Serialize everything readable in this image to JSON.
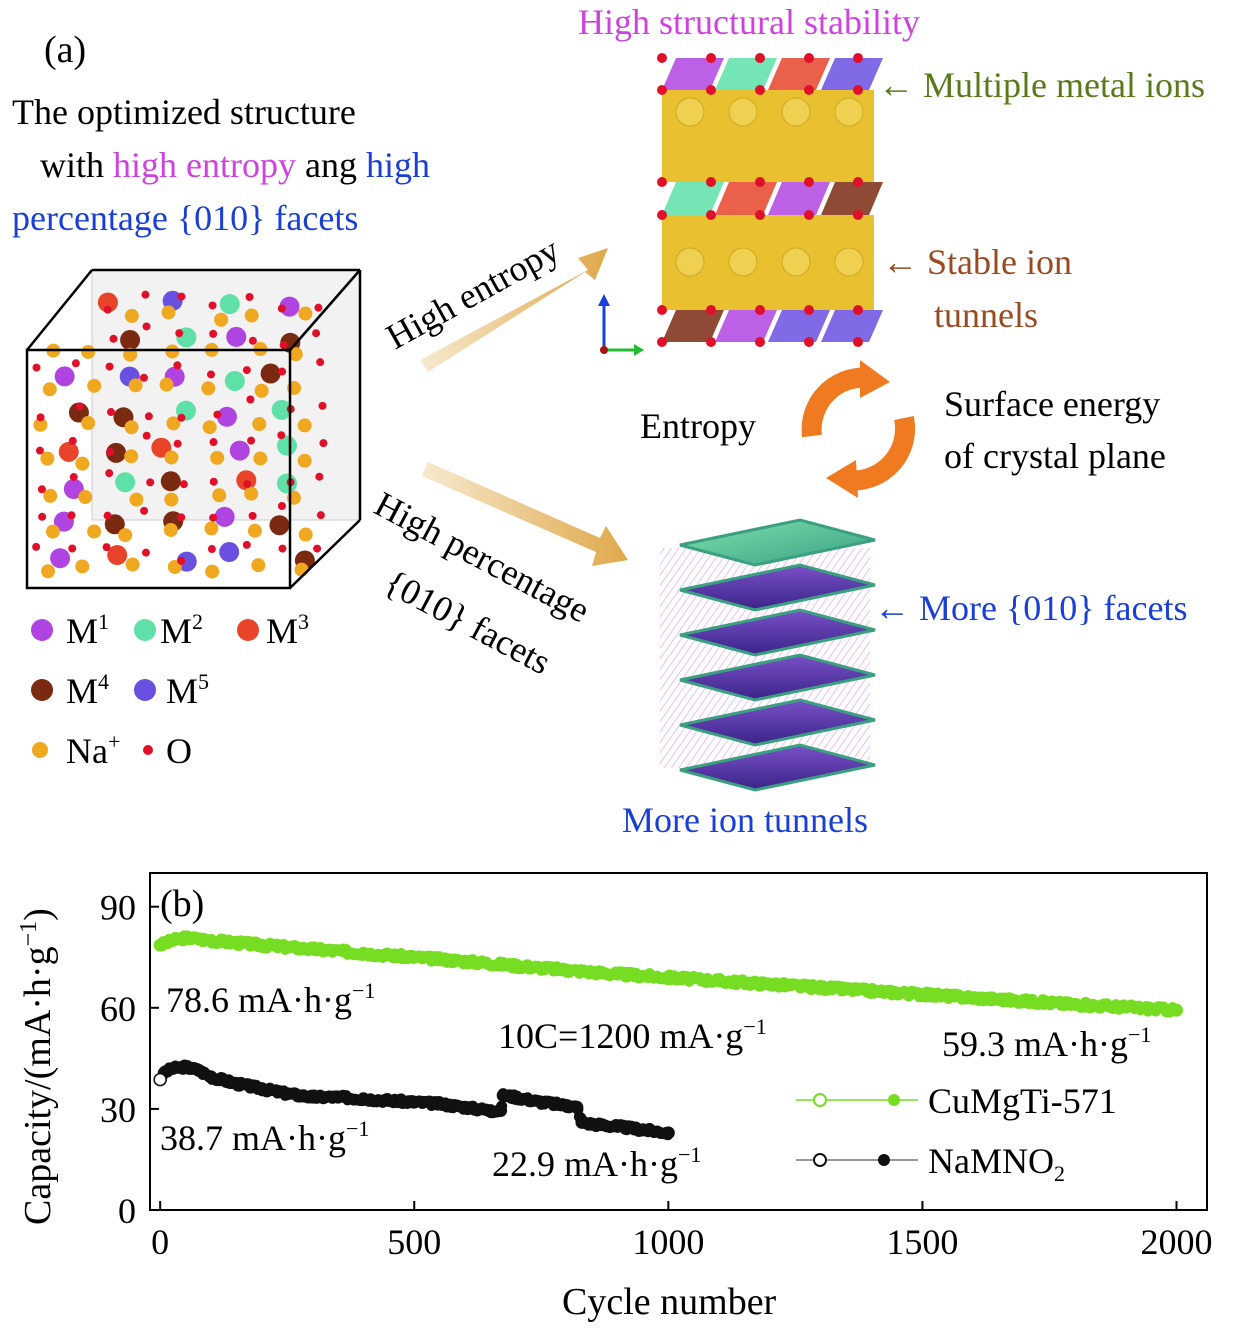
{
  "panel_a": {
    "label": "(a)",
    "desc_line1": "The optimized structure",
    "desc_line2_pre": "with ",
    "desc_line2_high_entropy": "high entropy",
    "desc_line2_mid": " ang ",
    "desc_line2_high": "high",
    "desc_line3": "percentage {010} facets",
    "legend": {
      "m1": "M",
      "m1_sup": "1",
      "m2": "M",
      "m2_sup": "2",
      "m3": "M",
      "m3_sup": "3",
      "m4": "M",
      "m4_sup": "4",
      "m5": "M",
      "m5_sup": "5",
      "na": "Na",
      "na_sup": "+",
      "o": "O"
    },
    "arrow_top_label": "High entropy",
    "arrow_bottom_line1": "High percentage",
    "arrow_bottom_line2": "{010} facets",
    "top_title": "High structural stability",
    "multiple_metal_ions": "Multiple metal ions",
    "stable_ion_line1": "Stable ion",
    "stable_ion_line2": "tunnels",
    "entropy": "Entropy",
    "surface_line1": "Surface energy",
    "surface_line2": "of crystal plane",
    "more_facets": "More {010} facets",
    "more_tunnels": "More ion tunnels",
    "colors": {
      "magenta": "#cc44dd",
      "blue": "#1a3fd6",
      "green_text": "#5a7a1a",
      "brown_text": "#9a4a20",
      "m1": "#b044e0",
      "m2": "#5ee0a8",
      "m3": "#e8442a",
      "m4": "#7a2a10",
      "m5": "#6a50e0",
      "na": "#f0a820",
      "o": "#e0102a"
    }
  },
  "panel_b": {
    "label": "(b)",
    "annotations": {
      "start_green": "78.6 mA·h·g",
      "end_green": "59.3 mA·h·g",
      "rate": "10C=1200 mA·g",
      "start_black": "38.7 mA·h·g",
      "end_black": "22.9 mA·h·g",
      "sup": "−1"
    }
  },
  "chart_data": {
    "type": "scatter",
    "xlabel": "Cycle number",
    "ylabel": "Capacity/(mA·h·g",
    "ylabel_sup": "−1",
    "ylabel_end": ")",
    "xlim": [
      -20,
      2060
    ],
    "ylim": [
      0,
      100
    ],
    "xticks": [
      0,
      500,
      1000,
      1500,
      2000
    ],
    "yticks": [
      0,
      30,
      60,
      90
    ],
    "legend_position": "right",
    "series": [
      {
        "name": "CuMgTi-571",
        "color": "#77dd22",
        "x": [
          0,
          25,
          50,
          100,
          200,
          300,
          400,
          500,
          600,
          700,
          800,
          900,
          1000,
          1100,
          1200,
          1300,
          1400,
          1500,
          1600,
          1700,
          1800,
          1900,
          2000
        ],
        "y": [
          78.6,
          80.0,
          80.8,
          80.0,
          78.6,
          77.4,
          76.2,
          75.0,
          73.8,
          72.5,
          71.2,
          70.0,
          69.0,
          68.0,
          67.0,
          66.0,
          65.0,
          64.0,
          63.0,
          62.0,
          61.0,
          60.2,
          59.3
        ]
      },
      {
        "name": "NaMNO",
        "name_sub": "2",
        "color": "#111111",
        "x": [
          0,
          10,
          25,
          50,
          75,
          100,
          150,
          200,
          250,
          300,
          350,
          400,
          450,
          500,
          550,
          600,
          650,
          670,
          675,
          700,
          750,
          800,
          820,
          830,
          850,
          900,
          950,
          1000
        ],
        "y": [
          38.7,
          41.0,
          42.0,
          42.5,
          41.5,
          39.5,
          37.5,
          36.0,
          34.5,
          33.5,
          33.5,
          33.0,
          32.5,
          32.0,
          31.5,
          30.5,
          29.5,
          29.5,
          34.0,
          33.5,
          32.0,
          31.0,
          30.5,
          26.0,
          25.5,
          24.8,
          23.8,
          22.9
        ]
      }
    ]
  }
}
